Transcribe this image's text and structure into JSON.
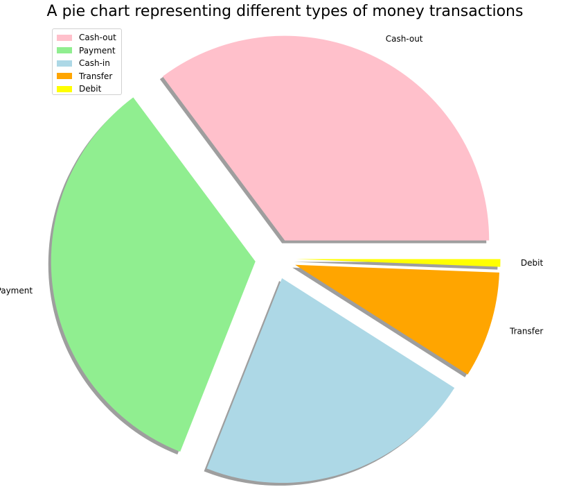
{
  "chart_data": {
    "type": "pie",
    "title": "A pie chart representing different types of money transactions",
    "legend_position": "top-left",
    "shadow": true,
    "start_angle_deg": 0,
    "direction": "counterclockwise",
    "slices": [
      {
        "label": "Cash-out",
        "value": 35.2,
        "color": "#ffc0cb",
        "explode": 0.1
      },
      {
        "label": "Payment",
        "value": 33.8,
        "color": "#90ee90",
        "explode": 0.1
      },
      {
        "label": "Cash-in",
        "value": 22.0,
        "color": "#add8e6",
        "explode": 0.1
      },
      {
        "label": "Transfer",
        "value": 8.4,
        "color": "#ffa500",
        "explode": 0.1
      },
      {
        "label": "Debit",
        "value": 0.6,
        "color": "#ffff00",
        "explode": 0.1
      }
    ]
  }
}
